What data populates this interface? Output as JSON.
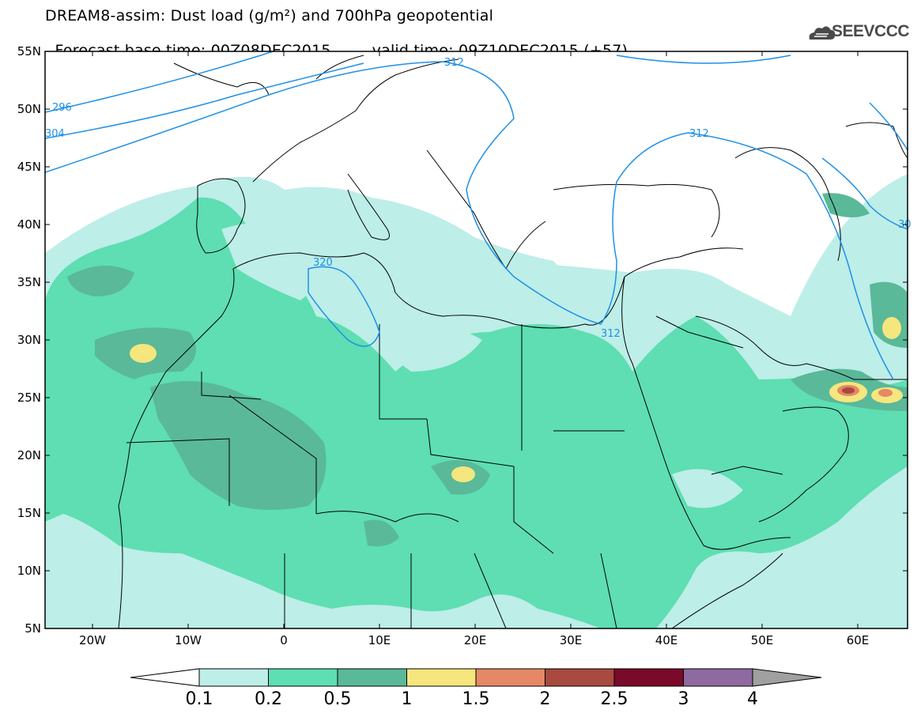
{
  "title": {
    "line1": "DREAM8-assim: Dust load (g/m²) and 700hPa geopotential",
    "line2_base": "Forecast base time: 00Z08DEC2015",
    "line2_valid": "valid time: 09Z10DEC2015 (+57)"
  },
  "logo": {
    "name": "cloud-icon",
    "text": "SEEVCCC"
  },
  "map": {
    "lat_labels": [
      "55N",
      "50N",
      "45N",
      "40N",
      "35N",
      "30N",
      "25N",
      "20N",
      "15N",
      "10N",
      "5N"
    ],
    "lon_labels": [
      "20W",
      "10W",
      "0",
      "10E",
      "20E",
      "30E",
      "40E",
      "50E",
      "60E"
    ],
    "contour_labels": [
      "296",
      "304",
      "312",
      "312",
      "312",
      "320",
      "30"
    ],
    "colors": {
      "contour": "#1e90e8",
      "coast": "#000000"
    }
  },
  "colorbar": {
    "labels": [
      "0.1",
      "0.2",
      "0.5",
      "1",
      "1.5",
      "2",
      "2.5",
      "3",
      "4"
    ],
    "colors": [
      "#ffffff",
      "#bdeee8",
      "#5edeb2",
      "#5ab998",
      "#f5e67e",
      "#e58866",
      "#a84a3f",
      "#7a0a2a",
      "#8e6aa0",
      "#a0a0a0"
    ]
  }
}
